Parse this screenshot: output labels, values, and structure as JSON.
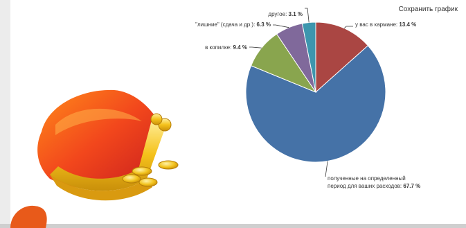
{
  "chart_data": {
    "type": "pie",
    "slices": [
      {
        "label": "у вас в кармане:",
        "value": 13.4,
        "value_text": "13.4 %",
        "color": "#aa4643"
      },
      {
        "label": "полученные на определенный период для ваших расходов:",
        "label_lines": [
          "полученные на определенный",
          "период для ваших расходов:"
        ],
        "value": 67.7,
        "value_text": "67.7 %",
        "color": "#4572a7"
      },
      {
        "label": "в копилке:",
        "value": 9.4,
        "value_text": "9.4 %",
        "color": "#89a54e"
      },
      {
        "label": "\"лишние\" (сдача и др.):",
        "value": 6.3,
        "value_text": "6.3 %",
        "color": "#80699b"
      },
      {
        "label": "другое:",
        "value": 3.1,
        "value_text": "3.1 %",
        "color": "#3d96ae"
      }
    ],
    "start_angle_deg": 0,
    "direction": "clockwise"
  },
  "toolbar": {
    "save_label": "Сохранить график"
  },
  "illustration": {
    "icon": "coin-purse-icon"
  }
}
